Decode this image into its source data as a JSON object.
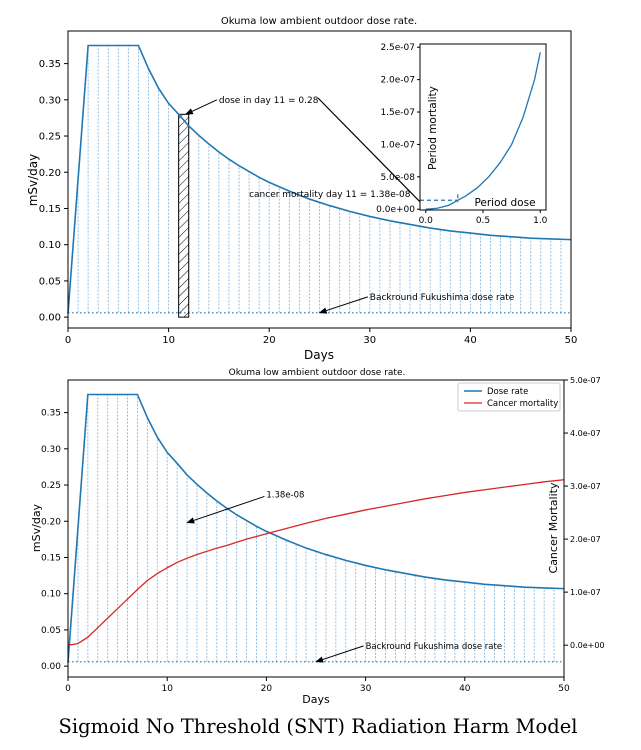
{
  "chart_data": [
    {
      "type": "line",
      "title": "Okuma low ambient outdoor dose rate.",
      "xlabel": "Days",
      "ylabel": "mSv/day",
      "xlim": [
        0,
        50
      ],
      "ylim": [
        -0.015,
        0.395
      ],
      "x_ticks": [
        0,
        10,
        20,
        30,
        40,
        50
      ],
      "y_ticks": [
        0.0,
        0.05,
        0.1,
        0.15,
        0.2,
        0.25,
        0.3,
        0.35
      ],
      "x_tick_labels": [
        "0",
        "10",
        "20",
        "30",
        "40",
        "50"
      ],
      "y_tick_labels": [
        "0.00",
        "0.05",
        "0.10",
        "0.15",
        "0.20",
        "0.25",
        "0.30",
        "0.35"
      ],
      "series": [
        {
          "color": "#1f77b4",
          "x": [
            0,
            2,
            3,
            4,
            5,
            6,
            7,
            8,
            9,
            10,
            11,
            12,
            13,
            14,
            15,
            16,
            17,
            18,
            19,
            20,
            22,
            24,
            26,
            28,
            30,
            32,
            34,
            36,
            38,
            40,
            42,
            44,
            46,
            48,
            50
          ],
          "y": [
            0.005,
            0.375,
            0.375,
            0.375,
            0.375,
            0.375,
            0.375,
            0.343,
            0.316,
            0.295,
            0.28,
            0.264,
            0.251,
            0.239,
            0.228,
            0.218,
            0.209,
            0.201,
            0.193,
            0.186,
            0.174,
            0.163,
            0.154,
            0.146,
            0.139,
            0.133,
            0.128,
            0.123,
            0.119,
            0.116,
            0.113,
            0.111,
            0.109,
            0.108,
            0.107
          ]
        }
      ],
      "baseline_value": 0.006,
      "highlight_bar": {
        "x_start": 11,
        "x_end": 12,
        "value": 0.28
      },
      "annotations": [
        {
          "text": "dose in day 11 = 0.28",
          "x": 15,
          "y": 0.3,
          "arrow_to_x": 11.7,
          "arrow_to_y": 0.28
        },
        {
          "text": "cancer mortality day 11 = 1.38e-08",
          "x": 18,
          "y": 0.17
        },
        {
          "text": "Backround Fukushima dose rate",
          "x": 30,
          "y": 0.028,
          "arrow_to_x": 25,
          "arrow_to_y": 0.006
        }
      ],
      "inset": {
        "type": "line",
        "xlabel": "Period dose",
        "ylabel": "Period mortality",
        "xlim": [
          -0.05,
          1.05
        ],
        "ylim": [
          -1.2e-09,
          2.55e-07
        ],
        "x_ticks": [
          0.0,
          0.5,
          1.0
        ],
        "x_tick_labels": [
          "0.0",
          "0.5",
          "1.0"
        ],
        "y_ticks": [
          0,
          5e-08,
          1e-07,
          1.5e-07,
          2e-07,
          2.5e-07
        ],
        "y_tick_labels": [
          "0.0e+00",
          "5.0e-08",
          "1.0e-07",
          "1.5e-07",
          "2.0e-07",
          "2.5e-07"
        ],
        "x": [
          0,
          0.1,
          0.2,
          0.28,
          0.35,
          0.45,
          0.55,
          0.65,
          0.75,
          0.85,
          0.95,
          1.0
        ],
        "y": [
          0.0,
          1.5e-09,
          6e-09,
          1.38e-08,
          2.05e-08,
          3.3e-08,
          5e-08,
          7.2e-08,
          1e-07,
          1.42e-07,
          2e-07,
          2.42e-07
        ],
        "marker_x": 0.28,
        "marker_y": 1.38e-08
      }
    },
    {
      "type": "line",
      "title": "Okuma low ambient outdoor dose rate.",
      "xlabel": "Days",
      "ylabel": "mSv/day",
      "y2label": "Cancer Mortality",
      "xlim": [
        0,
        50
      ],
      "ylim": [
        -0.015,
        0.395
      ],
      "y2lim": [
        -6e-08,
        5e-07
      ],
      "x_ticks": [
        0,
        10,
        20,
        30,
        40,
        50
      ],
      "y_ticks": [
        0.0,
        0.05,
        0.1,
        0.15,
        0.2,
        0.25,
        0.3,
        0.35
      ],
      "y2_ticks": [
        0,
        1e-07,
        2e-07,
        3e-07,
        4e-07,
        5e-07
      ],
      "x_tick_labels": [
        "0",
        "10",
        "20",
        "30",
        "40",
        "50"
      ],
      "y_tick_labels": [
        "0.00",
        "0.05",
        "0.10",
        "0.15",
        "0.20",
        "0.25",
        "0.30",
        "0.35"
      ],
      "y2_tick_labels": [
        "0.0e+00",
        "1.0e-07",
        "2.0e-07",
        "3.0e-07",
        "4.0e-07",
        "5.0e-07"
      ],
      "legend": "top-right",
      "series": [
        {
          "name": "Dose rate",
          "axis": "left",
          "color": "#1f77b4",
          "x": [
            0,
            2,
            3,
            4,
            5,
            6,
            7,
            8,
            9,
            10,
            11,
            12,
            13,
            14,
            15,
            16,
            17,
            18,
            19,
            20,
            22,
            24,
            26,
            28,
            30,
            32,
            34,
            36,
            38,
            40,
            42,
            44,
            46,
            48,
            50
          ],
          "y": [
            0.005,
            0.375,
            0.375,
            0.375,
            0.375,
            0.375,
            0.375,
            0.343,
            0.316,
            0.295,
            0.28,
            0.264,
            0.251,
            0.239,
            0.228,
            0.218,
            0.209,
            0.201,
            0.193,
            0.186,
            0.174,
            0.163,
            0.154,
            0.146,
            0.139,
            0.133,
            0.128,
            0.123,
            0.119,
            0.116,
            0.113,
            0.111,
            0.109,
            0.108,
            0.107
          ]
        },
        {
          "name": "Cancer mortality",
          "axis": "right",
          "color": "#d62728",
          "x": [
            0,
            1,
            2,
            3,
            4,
            5,
            6,
            7,
            8,
            9,
            10,
            11,
            12,
            13,
            14,
            15,
            16,
            17,
            18,
            19,
            20,
            22,
            24,
            26,
            28,
            30,
            32,
            34,
            36,
            38,
            40,
            42,
            44,
            46,
            48,
            50
          ],
          "y": [
            0.0,
            3e-09,
            1.5e-08,
            3.3e-08,
            5.1e-08,
            6.9e-08,
            8.7e-08,
            1.05e-07,
            1.22e-07,
            1.35e-07,
            1.46e-07,
            1.56e-07,
            1.64e-07,
            1.71e-07,
            1.77e-07,
            1.83e-07,
            1.88e-07,
            1.94e-07,
            2e-07,
            2.05e-07,
            2.1e-07,
            2.2e-07,
            2.3e-07,
            2.39e-07,
            2.47e-07,
            2.55e-07,
            2.62e-07,
            2.69e-07,
            2.76e-07,
            2.82e-07,
            2.88e-07,
            2.93e-07,
            2.98e-07,
            3.03e-07,
            3.08e-07,
            3.12e-07
          ]
        }
      ],
      "baseline_value": 0.006,
      "annotations": [
        {
          "text": "1.38e-08",
          "x": 20,
          "y": 0.237,
          "arrow_to_x": 12,
          "arrow_to_y": 0.198
        },
        {
          "text": "Backround Fukushima dose rate",
          "x": 30,
          "y": 0.028,
          "arrow_to_x": 25,
          "arrow_to_y": 0.006
        }
      ]
    }
  ],
  "caption": "Sigmoid No Threshold (SNT) Radiation Harm Model"
}
